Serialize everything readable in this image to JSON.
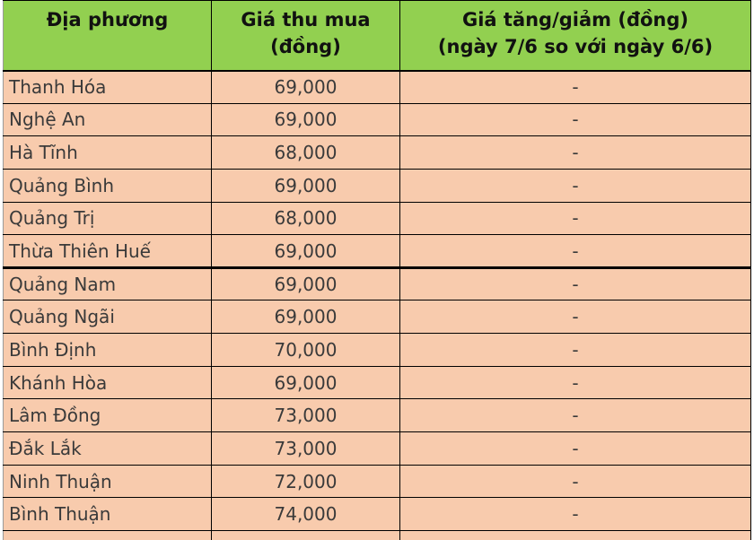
{
  "colors": {
    "header_bg": "#92d050",
    "row_bg": "#f8cbad",
    "border": "#000000",
    "header_text": "#111111",
    "body_text": "#3a3a3a"
  },
  "table": {
    "header": [
      {
        "line1": "Địa phương",
        "line2": ""
      },
      {
        "line1": "Giá thu mua",
        "line2": "(đồng)"
      },
      {
        "line1": "Giá tăng/giảm (đồng)",
        "line2": "(ngày 7/6 so với ngày 6/6)"
      }
    ],
    "rows": [
      {
        "province": "Thanh Hóa",
        "price": "69,000",
        "change": "-"
      },
      {
        "province": "Nghệ An",
        "price": "69,000",
        "change": "-"
      },
      {
        "province": "Hà Tĩnh",
        "price": "68,000",
        "change": "-"
      },
      {
        "province": "Quảng Bình",
        "price": "69,000",
        "change": "-"
      },
      {
        "province": "Quảng Trị",
        "price": "68,000",
        "change": "-"
      },
      {
        "province": "Thừa Thiên Huế",
        "price": "69,000",
        "change": "-"
      },
      {
        "province": "Quảng Nam",
        "price": "69,000",
        "change": "-"
      },
      {
        "province": "Quảng Ngãi",
        "price": "69,000",
        "change": "-"
      },
      {
        "province": "Bình Định",
        "price": "70,000",
        "change": "-"
      },
      {
        "province": "Khánh Hòa",
        "price": "69,000",
        "change": "-"
      },
      {
        "province": "Lâm Đồng",
        "price": "73,000",
        "change": "-"
      },
      {
        "province": "Đắk Lắk",
        "price": "73,000",
        "change": "-"
      },
      {
        "province": "Ninh Thuận",
        "price": "72,000",
        "change": "-"
      },
      {
        "province": "Bình Thuận",
        "price": "74,000",
        "change": "-"
      }
    ]
  }
}
